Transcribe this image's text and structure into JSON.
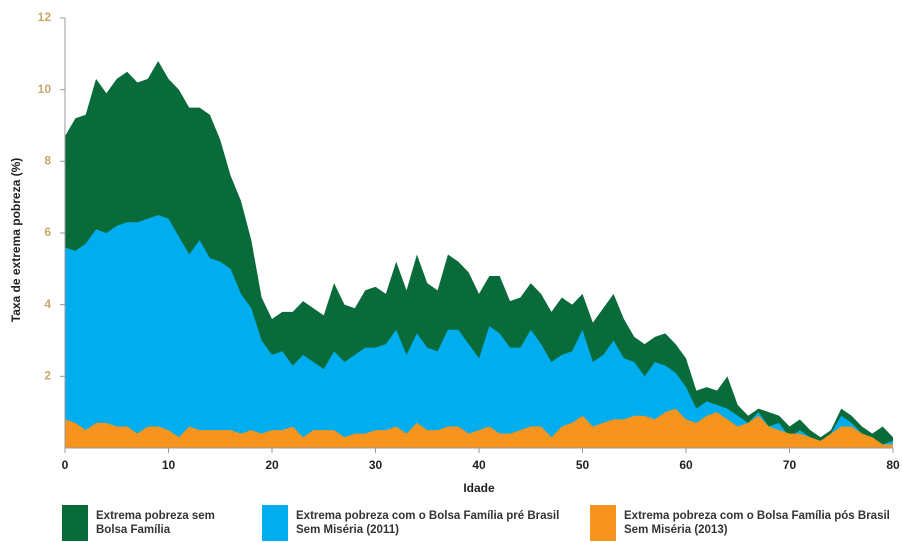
{
  "chart_data": {
    "type": "area",
    "y_label": "Taxa de extrema pobreza (%)",
    "x_label": "Idade",
    "x": [
      0,
      1,
      2,
      3,
      4,
      5,
      6,
      7,
      8,
      9,
      10,
      11,
      12,
      13,
      14,
      15,
      16,
      17,
      18,
      19,
      20,
      21,
      22,
      23,
      24,
      25,
      26,
      27,
      28,
      29,
      30,
      31,
      32,
      33,
      34,
      35,
      36,
      37,
      38,
      39,
      40,
      41,
      42,
      43,
      44,
      45,
      46,
      47,
      48,
      49,
      50,
      51,
      52,
      53,
      54,
      55,
      56,
      57,
      58,
      59,
      60,
      61,
      62,
      63,
      64,
      65,
      66,
      67,
      68,
      69,
      70,
      71,
      72,
      73,
      74,
      75,
      76,
      77,
      78,
      79,
      80
    ],
    "xlim": [
      0,
      80
    ],
    "xticks": [
      0,
      10,
      20,
      30,
      40,
      50,
      60,
      70,
      80
    ],
    "ylim": [
      0,
      12
    ],
    "yticks": [
      2,
      4,
      6,
      8,
      10,
      12
    ],
    "series": [
      {
        "name": "Extrema pobreza sem Bolsa Família",
        "color": "#0a6b3a",
        "values": [
          8.7,
          9.2,
          9.3,
          10.3,
          9.9,
          10.3,
          10.5,
          10.2,
          10.3,
          10.8,
          10.3,
          10.0,
          9.5,
          9.5,
          9.3,
          8.6,
          7.6,
          6.9,
          5.8,
          4.2,
          3.6,
          3.8,
          3.8,
          4.1,
          3.9,
          3.7,
          4.6,
          4.0,
          3.9,
          4.4,
          4.5,
          4.3,
          5.2,
          4.4,
          5.4,
          4.6,
          4.4,
          5.4,
          5.2,
          4.9,
          4.3,
          4.8,
          4.8,
          4.1,
          4.2,
          4.6,
          4.3,
          3.8,
          4.2,
          4.0,
          4.3,
          3.5,
          3.9,
          4.3,
          3.6,
          3.1,
          2.9,
          3.1,
          3.2,
          2.9,
          2.5,
          1.6,
          1.7,
          1.6,
          2.0,
          1.2,
          0.9,
          1.1,
          1.0,
          0.9,
          0.6,
          0.8,
          0.5,
          0.3,
          0.5,
          1.1,
          0.9,
          0.6,
          0.4,
          0.6,
          0.3
        ]
      },
      {
        "name": "Extrema pobreza com o Bolsa Família pré Brasil Sem Miséria (2011)",
        "color": "#00adef",
        "values": [
          5.6,
          5.5,
          5.7,
          6.1,
          6.0,
          6.2,
          6.3,
          6.3,
          6.4,
          6.5,
          6.4,
          5.9,
          5.4,
          5.8,
          5.3,
          5.2,
          5.0,
          4.3,
          3.9,
          3.0,
          2.6,
          2.7,
          2.3,
          2.6,
          2.4,
          2.2,
          2.7,
          2.4,
          2.6,
          2.8,
          2.8,
          2.9,
          3.3,
          2.6,
          3.2,
          2.8,
          2.7,
          3.3,
          3.3,
          2.9,
          2.5,
          3.4,
          3.2,
          2.8,
          2.8,
          3.3,
          2.9,
          2.4,
          2.6,
          2.7,
          3.3,
          2.4,
          2.6,
          3.0,
          2.5,
          2.4,
          2.0,
          2.4,
          2.3,
          2.1,
          1.7,
          1.1,
          1.3,
          1.2,
          1.1,
          0.9,
          0.7,
          1.0,
          0.6,
          0.7,
          0.3,
          0.5,
          0.3,
          0.2,
          0.4,
          0.9,
          0.7,
          0.4,
          0.3,
          0.1,
          0.2
        ]
      },
      {
        "name": "Extrema pobreza com o Bolsa Família pós Brasil Sem Miséria (2013)",
        "color": "#f7941d",
        "values": [
          0.8,
          0.7,
          0.5,
          0.7,
          0.7,
          0.6,
          0.6,
          0.4,
          0.6,
          0.6,
          0.5,
          0.3,
          0.6,
          0.5,
          0.5,
          0.5,
          0.5,
          0.4,
          0.5,
          0.4,
          0.5,
          0.5,
          0.6,
          0.3,
          0.5,
          0.5,
          0.5,
          0.3,
          0.4,
          0.4,
          0.5,
          0.5,
          0.6,
          0.4,
          0.7,
          0.5,
          0.5,
          0.6,
          0.6,
          0.4,
          0.5,
          0.6,
          0.4,
          0.4,
          0.5,
          0.6,
          0.6,
          0.3,
          0.6,
          0.7,
          0.9,
          0.6,
          0.7,
          0.8,
          0.8,
          0.9,
          0.9,
          0.8,
          1.0,
          1.1,
          0.8,
          0.7,
          0.9,
          1.0,
          0.8,
          0.6,
          0.7,
          0.9,
          0.6,
          0.5,
          0.4,
          0.4,
          0.3,
          0.2,
          0.4,
          0.6,
          0.6,
          0.4,
          0.3,
          0.1,
          0.1
        ]
      }
    ]
  }
}
